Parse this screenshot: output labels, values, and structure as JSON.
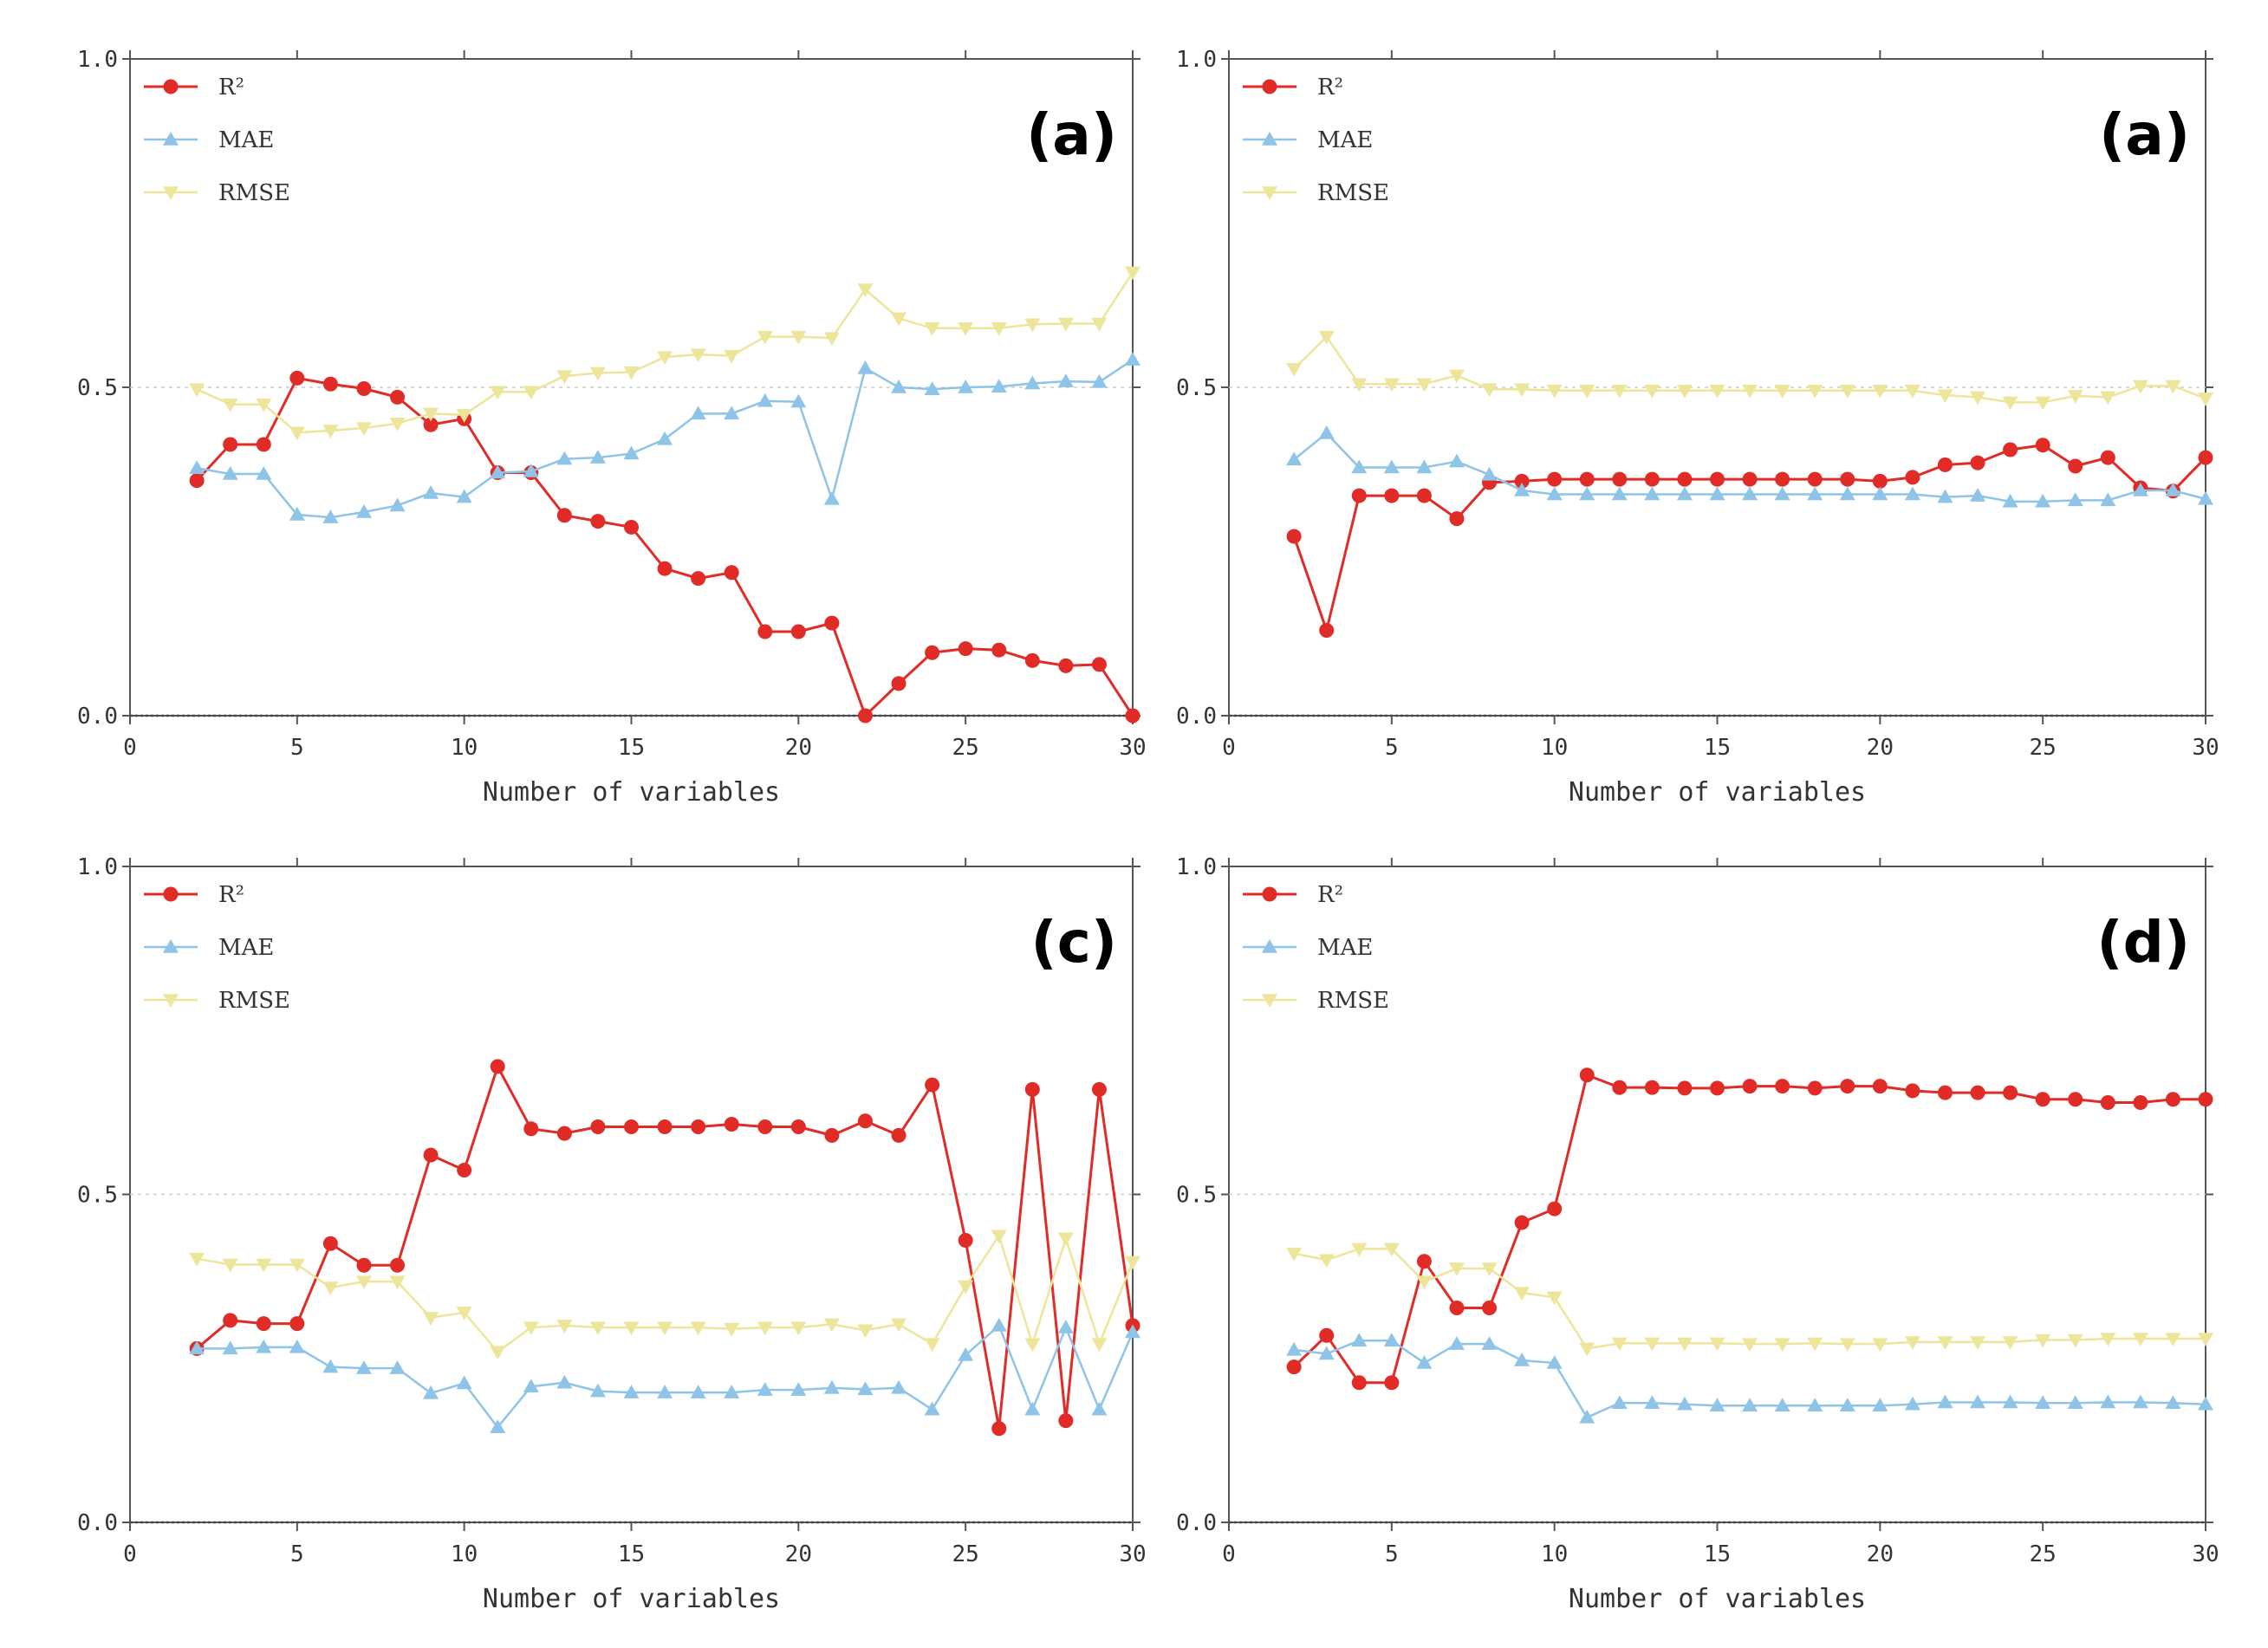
{
  "figure": {
    "x_axis_label": "Number of variables",
    "colors": {
      "R2": "#e02b26",
      "MAE": "#8ec4e8",
      "RMSE": "#ede69a"
    }
  },
  "chart_data": [
    {
      "type": "line",
      "panel_label": "(a)",
      "xlabel": "Number of variables",
      "ylabel": "",
      "xlim": [
        0,
        30
      ],
      "ylim": [
        0,
        1.0
      ],
      "x_ticks": [
        0,
        5,
        10,
        15,
        20,
        25,
        30
      ],
      "y_ticks": [
        0.0,
        0.5,
        1.0
      ],
      "legend_position": "top-left",
      "x": [
        2,
        3,
        4,
        5,
        6,
        7,
        8,
        9,
        10,
        11,
        12,
        13,
        14,
        15,
        16,
        17,
        18,
        19,
        20,
        21,
        22,
        23,
        24,
        25,
        26,
        27,
        28,
        29,
        30
      ],
      "series": [
        {
          "name": "R²",
          "marker": "circle",
          "values": [
            0.358,
            0.413,
            0.413,
            0.514,
            0.505,
            0.498,
            0.485,
            0.443,
            0.452,
            0.37,
            0.37,
            0.305,
            0.296,
            0.287,
            0.224,
            0.209,
            0.218,
            0.128,
            0.128,
            0.141,
            0.0,
            0.049,
            0.096,
            0.102,
            0.1,
            0.084,
            0.076,
            0.078,
            0.0
          ]
        },
        {
          "name": "MAE",
          "marker": "triangle-up",
          "values": [
            0.377,
            0.368,
            0.368,
            0.306,
            0.302,
            0.31,
            0.32,
            0.339,
            0.333,
            0.37,
            0.372,
            0.391,
            0.393,
            0.399,
            0.421,
            0.46,
            0.46,
            0.479,
            0.478,
            0.33,
            0.529,
            0.5,
            0.497,
            0.5,
            0.501,
            0.506,
            0.509,
            0.508,
            0.542
          ]
        },
        {
          "name": "RMSE",
          "marker": "triangle-down",
          "values": [
            0.497,
            0.474,
            0.474,
            0.431,
            0.434,
            0.438,
            0.445,
            0.46,
            0.458,
            0.493,
            0.493,
            0.517,
            0.522,
            0.523,
            0.546,
            0.55,
            0.548,
            0.577,
            0.577,
            0.575,
            0.649,
            0.605,
            0.59,
            0.59,
            0.59,
            0.596,
            0.597,
            0.597,
            0.675
          ]
        }
      ]
    },
    {
      "type": "line",
      "panel_label": "(a)",
      "xlabel": "Number of variables",
      "ylabel": "",
      "xlim": [
        0,
        30
      ],
      "ylim": [
        0,
        1.0
      ],
      "x_ticks": [
        0,
        5,
        10,
        15,
        20,
        25,
        30
      ],
      "y_ticks": [
        0.0,
        0.5,
        1.0
      ],
      "legend_position": "top-left",
      "x": [
        2,
        3,
        4,
        5,
        6,
        7,
        8,
        9,
        10,
        11,
        12,
        13,
        14,
        15,
        16,
        17,
        18,
        19,
        20,
        21,
        22,
        23,
        24,
        25,
        26,
        27,
        28,
        29,
        30
      ],
      "series": [
        {
          "name": "R²",
          "marker": "circle",
          "values": [
            0.273,
            0.13,
            0.335,
            0.335,
            0.335,
            0.3,
            0.355,
            0.357,
            0.36,
            0.36,
            0.36,
            0.36,
            0.36,
            0.36,
            0.36,
            0.36,
            0.36,
            0.36,
            0.357,
            0.363,
            0.382,
            0.385,
            0.405,
            0.412,
            0.38,
            0.393,
            0.347,
            0.342,
            0.393
          ]
        },
        {
          "name": "MAE",
          "marker": "triangle-up",
          "values": [
            0.39,
            0.43,
            0.378,
            0.378,
            0.378,
            0.387,
            0.367,
            0.343,
            0.337,
            0.337,
            0.337,
            0.337,
            0.337,
            0.337,
            0.337,
            0.337,
            0.337,
            0.337,
            0.337,
            0.337,
            0.333,
            0.335,
            0.326,
            0.326,
            0.328,
            0.328,
            0.343,
            0.343,
            0.33
          ]
        },
        {
          "name": "RMSE",
          "marker": "triangle-down",
          "values": [
            0.528,
            0.577,
            0.505,
            0.505,
            0.505,
            0.518,
            0.497,
            0.497,
            0.495,
            0.495,
            0.495,
            0.495,
            0.495,
            0.495,
            0.495,
            0.495,
            0.495,
            0.495,
            0.495,
            0.495,
            0.488,
            0.485,
            0.477,
            0.477,
            0.487,
            0.485,
            0.502,
            0.502,
            0.483
          ]
        }
      ]
    },
    {
      "type": "line",
      "panel_label": "(c)",
      "xlabel": "Number of variables",
      "ylabel": "",
      "xlim": [
        0,
        30
      ],
      "ylim": [
        0,
        1.0
      ],
      "x_ticks": [
        0,
        5,
        10,
        15,
        20,
        25,
        30
      ],
      "y_ticks": [
        0.0,
        0.5,
        1.0
      ],
      "legend_position": "top-left",
      "x": [
        2,
        3,
        4,
        5,
        6,
        7,
        8,
        9,
        10,
        11,
        12,
        13,
        14,
        15,
        16,
        17,
        18,
        19,
        20,
        21,
        22,
        23,
        24,
        25,
        26,
        27,
        28,
        29,
        30
      ],
      "series": [
        {
          "name": "R²",
          "marker": "circle",
          "values": [
            0.265,
            0.308,
            0.303,
            0.303,
            0.425,
            0.392,
            0.392,
            0.56,
            0.537,
            0.695,
            0.6,
            0.593,
            0.603,
            0.603,
            0.603,
            0.603,
            0.607,
            0.603,
            0.603,
            0.59,
            0.612,
            0.59,
            0.667,
            0.43,
            0.143,
            0.66,
            0.155,
            0.66,
            0.3
          ]
        },
        {
          "name": "MAE",
          "marker": "triangle-up",
          "values": [
            0.265,
            0.265,
            0.267,
            0.267,
            0.237,
            0.235,
            0.235,
            0.197,
            0.212,
            0.145,
            0.207,
            0.213,
            0.2,
            0.198,
            0.198,
            0.198,
            0.198,
            0.202,
            0.202,
            0.205,
            0.203,
            0.205,
            0.172,
            0.255,
            0.3,
            0.172,
            0.297,
            0.172,
            0.29
          ]
        },
        {
          "name": "RMSE",
          "marker": "triangle-down",
          "values": [
            0.402,
            0.393,
            0.393,
            0.393,
            0.358,
            0.367,
            0.367,
            0.312,
            0.32,
            0.26,
            0.297,
            0.3,
            0.297,
            0.297,
            0.297,
            0.297,
            0.295,
            0.297,
            0.297,
            0.302,
            0.293,
            0.302,
            0.272,
            0.36,
            0.437,
            0.272,
            0.433,
            0.272,
            0.397
          ]
        }
      ]
    },
    {
      "type": "line",
      "panel_label": "(d)",
      "xlabel": "Number of variables",
      "ylabel": "",
      "xlim": [
        0,
        30
      ],
      "ylim": [
        0,
        1.0
      ],
      "x_ticks": [
        0,
        5,
        10,
        15,
        20,
        25,
        30
      ],
      "y_ticks": [
        0.0,
        0.5,
        1.0
      ],
      "legend_position": "top-left",
      "x": [
        2,
        3,
        4,
        5,
        6,
        7,
        8,
        9,
        10,
        11,
        12,
        13,
        14,
        15,
        16,
        17,
        18,
        19,
        20,
        21,
        22,
        23,
        24,
        25,
        26,
        27,
        28,
        29,
        30
      ],
      "series": [
        {
          "name": "R²",
          "marker": "circle",
          "values": [
            0.237,
            0.285,
            0.213,
            0.213,
            0.398,
            0.327,
            0.327,
            0.457,
            0.478,
            0.682,
            0.663,
            0.663,
            0.662,
            0.662,
            0.665,
            0.665,
            0.662,
            0.665,
            0.665,
            0.658,
            0.655,
            0.655,
            0.655,
            0.645,
            0.645,
            0.64,
            0.64,
            0.645,
            0.645
          ]
        },
        {
          "name": "MAE",
          "marker": "triangle-up",
          "values": [
            0.263,
            0.257,
            0.277,
            0.277,
            0.243,
            0.272,
            0.272,
            0.247,
            0.243,
            0.16,
            0.182,
            0.182,
            0.18,
            0.178,
            0.178,
            0.178,
            0.178,
            0.178,
            0.178,
            0.18,
            0.183,
            0.183,
            0.183,
            0.182,
            0.182,
            0.183,
            0.183,
            0.182,
            0.18
          ]
        },
        {
          "name": "RMSE",
          "marker": "triangle-down",
          "values": [
            0.41,
            0.4,
            0.417,
            0.417,
            0.367,
            0.387,
            0.387,
            0.35,
            0.343,
            0.265,
            0.273,
            0.273,
            0.273,
            0.273,
            0.272,
            0.272,
            0.273,
            0.272,
            0.272,
            0.275,
            0.275,
            0.275,
            0.275,
            0.278,
            0.278,
            0.28,
            0.28,
            0.28,
            0.28
          ]
        }
      ]
    }
  ]
}
